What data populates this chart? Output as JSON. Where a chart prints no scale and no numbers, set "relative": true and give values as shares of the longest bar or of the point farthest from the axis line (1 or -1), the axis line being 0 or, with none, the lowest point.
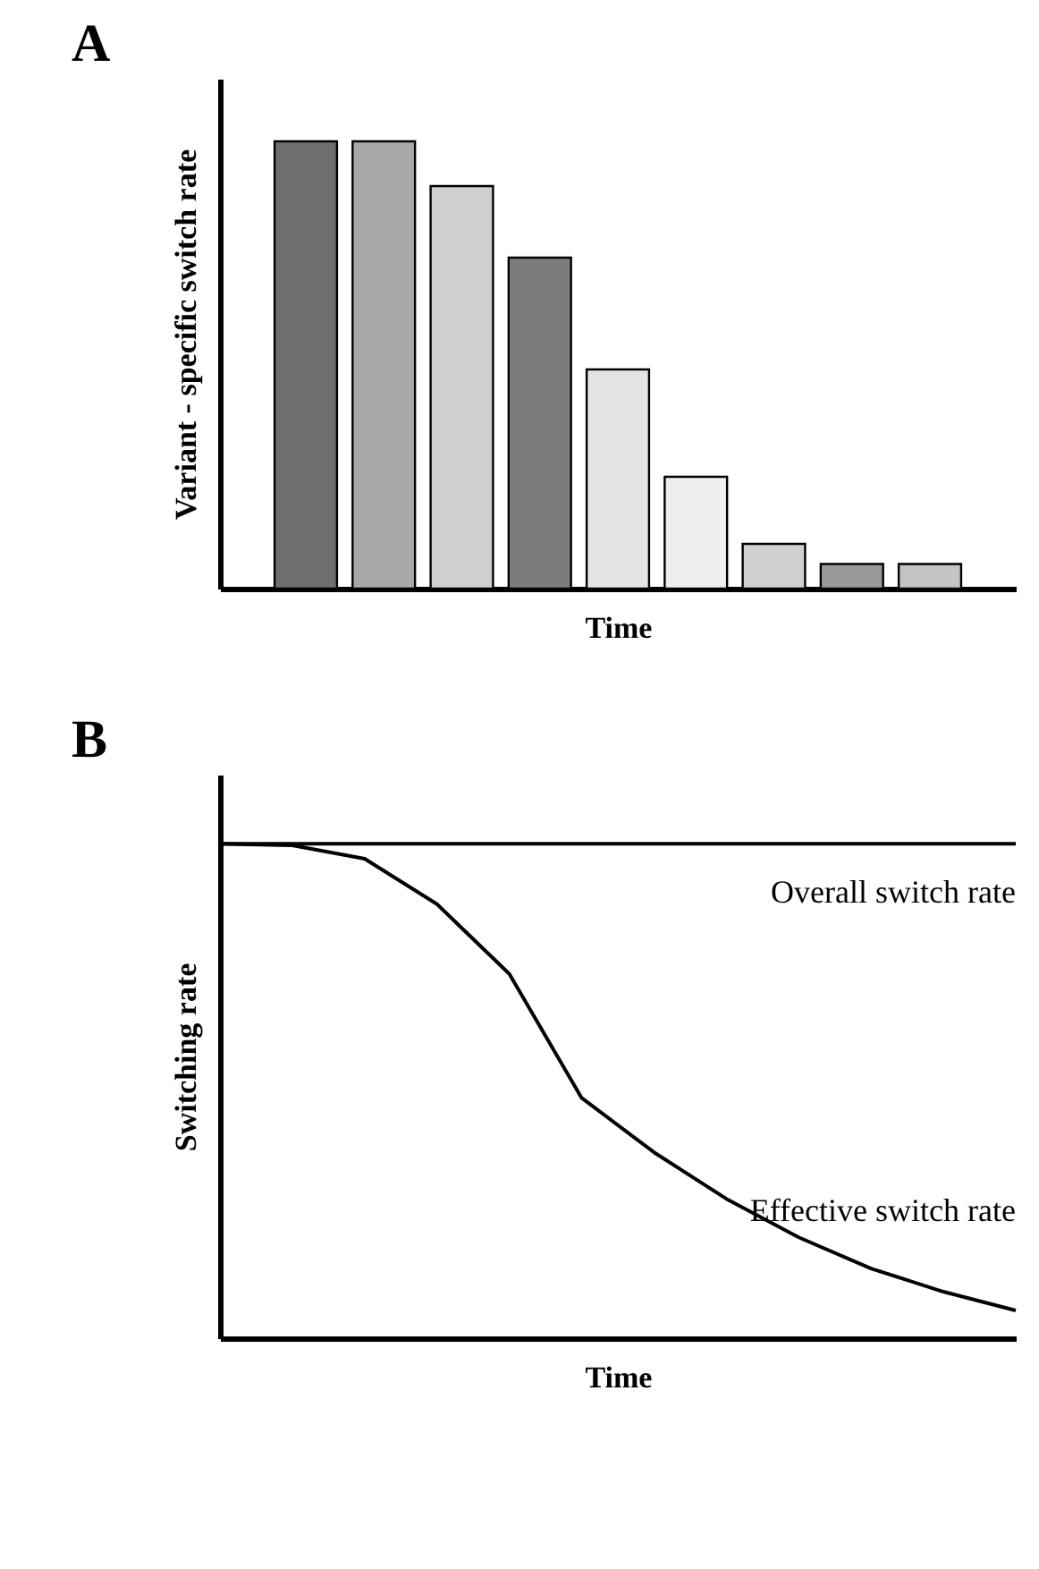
{
  "chart_data": [
    {
      "type": "bar",
      "title": "A",
      "xlabel": "Time",
      "ylabel": "Variant - specific switch rate",
      "relative": true,
      "tick_labels": false,
      "categories": [
        null,
        null,
        null,
        null,
        null,
        null,
        null,
        null,
        null
      ],
      "values": [
        1,
        1,
        0.9,
        0.74,
        0.49,
        0.25,
        0.1,
        0.055,
        0.055
      ],
      "colors": [
        "#6e6e6e",
        "#a8a8a8",
        "#cfcfcf",
        "#7c7c7c",
        "#e4e4e4",
        "#eeeeee",
        "#d0d0d0",
        "#9a9a9a",
        "#c4c4c4"
      ]
    },
    {
      "type": "line",
      "title": "B",
      "xlabel": "Time",
      "ylabel": "Switching rate",
      "relative": true,
      "tick_labels": false,
      "categories": [
        null,
        null,
        null,
        null,
        null,
        null,
        null,
        null,
        null,
        null,
        null,
        null
      ],
      "series": [
        {
          "name": "Overall switch rate",
          "color": "#000000",
          "values": [
            1,
            1,
            1,
            1,
            1,
            1,
            1,
            1,
            1,
            1,
            1,
            1
          ]
        },
        {
          "name": "Effective switch rate",
          "color": "#000000",
          "values": [
            1,
            0.997,
            0.97,
            0.878,
            0.737,
            0.486,
            0.376,
            0.282,
            0.204,
            0.141,
            0.094,
            0.056
          ]
        }
      ]
    }
  ]
}
